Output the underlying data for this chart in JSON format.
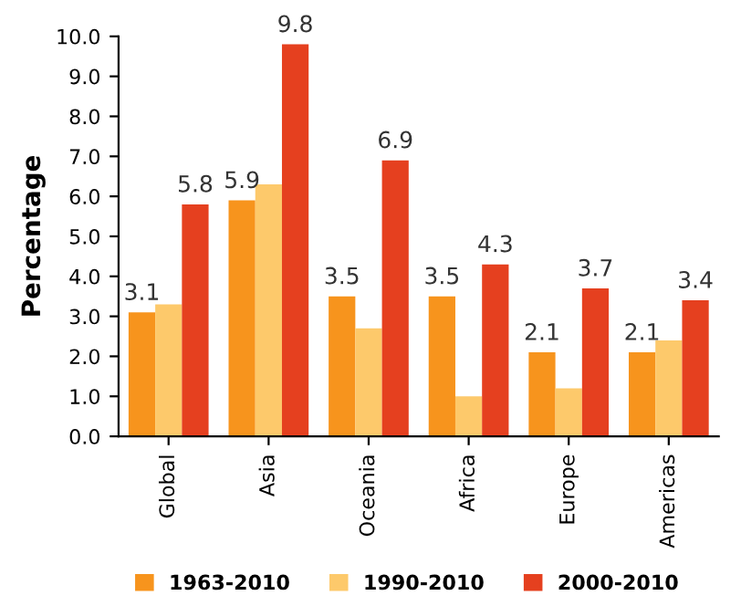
{
  "chart_data": {
    "type": "bar",
    "ylabel": "Percentage",
    "categories": [
      "Global",
      "Asia",
      "Oceania",
      "Africa",
      "Europe",
      "Americas"
    ],
    "series": [
      {
        "name": "1963-2010",
        "color": "#f7941d",
        "values": [
          3.1,
          5.9,
          3.5,
          3.5,
          2.1,
          2.1
        ],
        "value_labels": [
          "3.1",
          "5.9",
          "3.5",
          "3.5",
          "2.1",
          "2.1"
        ]
      },
      {
        "name": "1990-2010",
        "color": "#fdc96b",
        "values": [
          3.3,
          6.3,
          2.7,
          1.0,
          1.2,
          2.4
        ]
      },
      {
        "name": "2000-2010",
        "color": "#e5401f",
        "values": [
          5.8,
          9.8,
          6.9,
          4.3,
          3.7,
          3.4
        ],
        "value_labels": [
          "5.8",
          "9.8",
          "6.9",
          "4.3",
          "3.7",
          "3.4"
        ]
      }
    ],
    "ylim": [
      0,
      10
    ],
    "yticks": [
      {
        "value": 0,
        "label": "0.0"
      },
      {
        "value": 1,
        "label": "1.0"
      },
      {
        "value": 2,
        "label": "2.0"
      },
      {
        "value": 3,
        "label": "3.0"
      },
      {
        "value": 4,
        "label": "4.0"
      },
      {
        "value": 5,
        "label": "5.0"
      },
      {
        "value": 6,
        "label": "6.0"
      },
      {
        "value": 7,
        "label": "7.0"
      },
      {
        "value": 8,
        "label": "8.0"
      },
      {
        "value": 9,
        "label": "9.0"
      },
      {
        "value": 10,
        "label": "10.0"
      }
    ],
    "grid": false,
    "legend": "bottom"
  }
}
